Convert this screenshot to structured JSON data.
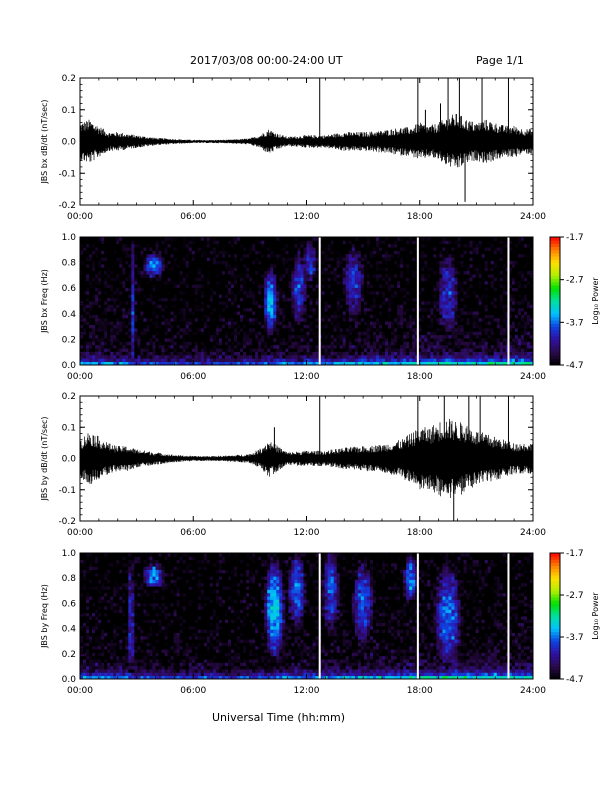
{
  "header": {
    "title": "2017/03/08  00:00-24:00 UT",
    "page": "Page 1/1"
  },
  "x_axis_title": "Universal Time (hh:mm)",
  "colors": {
    "trace": "#000000",
    "colormap": [
      "#000000",
      "#2a0a4a",
      "#3010a0",
      "#1040e0",
      "#00c0ff",
      "#00e0a0",
      "#00e000",
      "#b0f000",
      "#ffe000",
      "#ff8000",
      "#ff0000"
    ]
  },
  "chart_data": [
    {
      "type": "line",
      "ylabel": "JBS bx dB/dt (nT/sec)",
      "xlim": [
        "00:00",
        "24:00"
      ],
      "ylim": [
        -0.2,
        0.2
      ],
      "x_ticks": [
        "00:00",
        "06:00",
        "12:00",
        "18:00",
        "24:00"
      ],
      "y_ticks": [
        "-0.2",
        "-0.1",
        "0.0",
        "0.1",
        "0.2"
      ],
      "envelope": {
        "x_hours": [
          0,
          0.5,
          1,
          1.5,
          2,
          2.5,
          3,
          4,
          5,
          6,
          7,
          8,
          9,
          9.5,
          10,
          10.5,
          11,
          12,
          13,
          14,
          15,
          16,
          17,
          17.5,
          18,
          18.5,
          19,
          19.5,
          20,
          20.5,
          21,
          21.5,
          22,
          22.5,
          23,
          23.5,
          24
        ],
        "amplitude": [
          0.06,
          0.07,
          0.05,
          0.03,
          0.03,
          0.025,
          0.02,
          0.012,
          0.008,
          0.005,
          0.005,
          0.006,
          0.01,
          0.02,
          0.04,
          0.025,
          0.015,
          0.02,
          0.02,
          0.03,
          0.03,
          0.035,
          0.045,
          0.045,
          0.06,
          0.05,
          0.06,
          0.08,
          0.09,
          0.07,
          0.06,
          0.07,
          0.06,
          0.05,
          0.05,
          0.04,
          0.04
        ]
      },
      "spikes": [
        {
          "x": 12.7,
          "y": 0.2
        },
        {
          "x": 17.9,
          "y": 0.2
        },
        {
          "x": 18.3,
          "y": 0.1
        },
        {
          "x": 19.1,
          "y": 0.12
        },
        {
          "x": 19.5,
          "y": 0.2
        },
        {
          "x": 20.1,
          "y": 0.2
        },
        {
          "x": 20.4,
          "y": -0.19
        },
        {
          "x": 21.3,
          "y": 0.2
        },
        {
          "x": 22.7,
          "y": 0.2
        }
      ]
    },
    {
      "type": "heatmap",
      "ylabel": "JBS bx Freq (Hz)",
      "colorbar_label": "Log₁₀ Power",
      "xlim": [
        "00:00",
        "24:00"
      ],
      "ylim": [
        0.0,
        1.0
      ],
      "x_ticks": [
        "00:00",
        "06:00",
        "12:00",
        "18:00",
        "24:00"
      ],
      "y_ticks": [
        "0.0",
        "0.2",
        "0.4",
        "0.6",
        "0.8",
        "1.0"
      ],
      "color_range": [
        -4.7,
        -1.7
      ],
      "colorbar_ticks": [
        "-1.7",
        "-2.7",
        "-3.7",
        "-4.7"
      ],
      "gaps_hours": [
        12.7,
        17.9,
        22.7
      ],
      "features": [
        {
          "x": 2.8,
          "f": 0.45,
          "wx": 0.15,
          "wf": 0.5,
          "level": -3.9
        },
        {
          "x": 3.9,
          "f": 0.78,
          "wx": 0.45,
          "wf": 0.08,
          "level": -3.6
        },
        {
          "x": 10.1,
          "f": 0.5,
          "wx": 0.3,
          "wf": 0.2,
          "level": -3.5
        },
        {
          "x": 11.6,
          "f": 0.6,
          "wx": 0.35,
          "wf": 0.25,
          "level": -3.8
        },
        {
          "x": 12.2,
          "f": 0.8,
          "wx": 0.35,
          "wf": 0.15,
          "level": -3.9
        },
        {
          "x": 14.5,
          "f": 0.65,
          "wx": 0.5,
          "wf": 0.25,
          "level": -3.9
        },
        {
          "x": 19.5,
          "f": 0.55,
          "wx": 0.5,
          "wf": 0.3,
          "level": -3.9
        }
      ]
    },
    {
      "type": "line",
      "ylabel": "JBS by dB/dt (nT/sec)",
      "xlim": [
        "00:00",
        "24:00"
      ],
      "ylim": [
        -0.2,
        0.2
      ],
      "x_ticks": [
        "00:00",
        "06:00",
        "12:00",
        "18:00",
        "24:00"
      ],
      "y_ticks": [
        "-0.2",
        "-0.1",
        "0.0",
        "0.1",
        "0.2"
      ],
      "envelope": {
        "x_hours": [
          0,
          0.5,
          1,
          1.5,
          2,
          2.5,
          3,
          4,
          5,
          6,
          7,
          8,
          9,
          9.5,
          10,
          10.5,
          11,
          12,
          13,
          14,
          15,
          16,
          17,
          17.5,
          18,
          18.5,
          19,
          19.5,
          20,
          20.5,
          21,
          21.5,
          22,
          22.5,
          23,
          23.5,
          24
        ],
        "amplitude": [
          0.06,
          0.09,
          0.07,
          0.05,
          0.04,
          0.04,
          0.03,
          0.02,
          0.012,
          0.008,
          0.008,
          0.01,
          0.015,
          0.03,
          0.06,
          0.04,
          0.02,
          0.025,
          0.025,
          0.035,
          0.04,
          0.045,
          0.06,
          0.08,
          0.1,
          0.1,
          0.12,
          0.13,
          0.12,
          0.11,
          0.09,
          0.08,
          0.07,
          0.06,
          0.05,
          0.05,
          0.05
        ]
      },
      "spikes": [
        {
          "x": 10.3,
          "y": 0.1
        },
        {
          "x": 12.7,
          "y": 0.2
        },
        {
          "x": 17.9,
          "y": 0.2
        },
        {
          "x": 19.3,
          "y": 0.2
        },
        {
          "x": 19.8,
          "y": -0.2
        },
        {
          "x": 20.6,
          "y": 0.2
        },
        {
          "x": 21.2,
          "y": 0.2
        },
        {
          "x": 22.7,
          "y": 0.2
        }
      ]
    },
    {
      "type": "heatmap",
      "ylabel": "JBS by Freq (Hz)",
      "colorbar_label": "Log₁₀ Power",
      "xlim": [
        "00:00",
        "24:00"
      ],
      "ylim": [
        0.0,
        1.0
      ],
      "x_ticks": [
        "00:00",
        "06:00",
        "12:00",
        "18:00",
        "24:00"
      ],
      "y_ticks": [
        "0.0",
        "0.2",
        "0.4",
        "0.6",
        "0.8",
        "1.0"
      ],
      "color_range": [
        -4.7,
        -1.7
      ],
      "colorbar_ticks": [
        "-1.7",
        "-2.7",
        "-3.7",
        "-4.7"
      ],
      "gaps_hours": [
        12.7,
        17.9,
        22.7
      ],
      "features": [
        {
          "x": 2.7,
          "f": 0.45,
          "wx": 0.15,
          "wf": 0.5,
          "level": -3.9
        },
        {
          "x": 3.9,
          "f": 0.82,
          "wx": 0.45,
          "wf": 0.08,
          "level": -3.6
        },
        {
          "x": 10.3,
          "f": 0.55,
          "wx": 0.4,
          "wf": 0.3,
          "level": -3.4
        },
        {
          "x": 11.5,
          "f": 0.7,
          "wx": 0.4,
          "wf": 0.25,
          "level": -3.7
        },
        {
          "x": 13.3,
          "f": 0.7,
          "wx": 0.4,
          "wf": 0.3,
          "level": -3.8
        },
        {
          "x": 15.0,
          "f": 0.6,
          "wx": 0.5,
          "wf": 0.3,
          "level": -3.8
        },
        {
          "x": 17.5,
          "f": 0.8,
          "wx": 0.3,
          "wf": 0.15,
          "level": -3.6
        },
        {
          "x": 19.5,
          "f": 0.5,
          "wx": 0.6,
          "wf": 0.35,
          "level": -3.7
        }
      ]
    }
  ]
}
